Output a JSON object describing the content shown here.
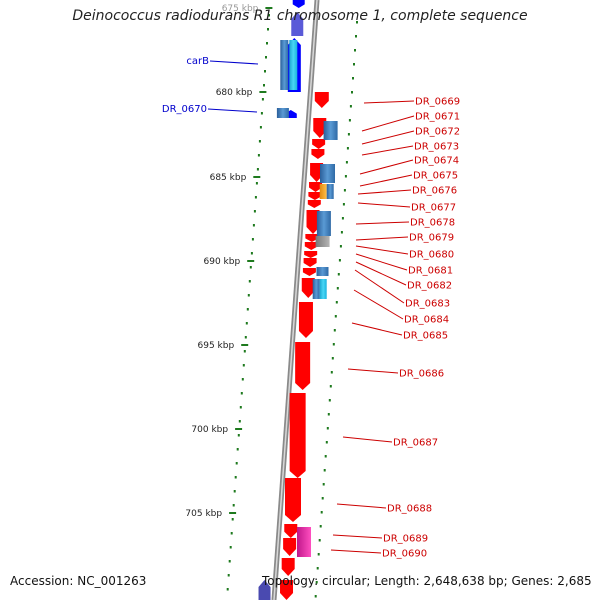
{
  "title": "Deinococcus radiodurans R1 chromosome 1, complete sequence",
  "accession": "Accession: NC_001263",
  "topology": "Topology: circular; Length: 2,648,638 bp; Genes: 2,685",
  "colors": {
    "forward_gene": "#ff0000",
    "reverse_gene": "#0000ff",
    "blue_feature": "#3a7fc0",
    "cyan_feature": "#22bfe6",
    "orange_feature": "#f5a623",
    "gray_feature": "#888888",
    "magenta_feature": "#e0219b",
    "tick": "#1e7a1e",
    "left_label": "#0000cc",
    "right_label": "#cc0000"
  },
  "scale_labels": [
    "675 kbp",
    "680 kbp",
    "685 kbp",
    "690 kbp",
    "695 kbp",
    "700 kbp",
    "705 kbp"
  ],
  "left_labels": [
    "carB",
    "DR_0670"
  ],
  "right_labels": [
    "DR_0669",
    "DR_0671",
    "DR_0672",
    "DR_0673",
    "DR_0674",
    "DR_0675",
    "DR_0676",
    "DR_0677",
    "DR_0678",
    "DR_0679",
    "DR_0680",
    "DR_0681",
    "DR_0682",
    "DR_0683",
    "DR_0684",
    "DR_0685",
    "DR_0686",
    "DR_0687",
    "DR_0688",
    "DR_0689",
    "DR_0690"
  ]
}
